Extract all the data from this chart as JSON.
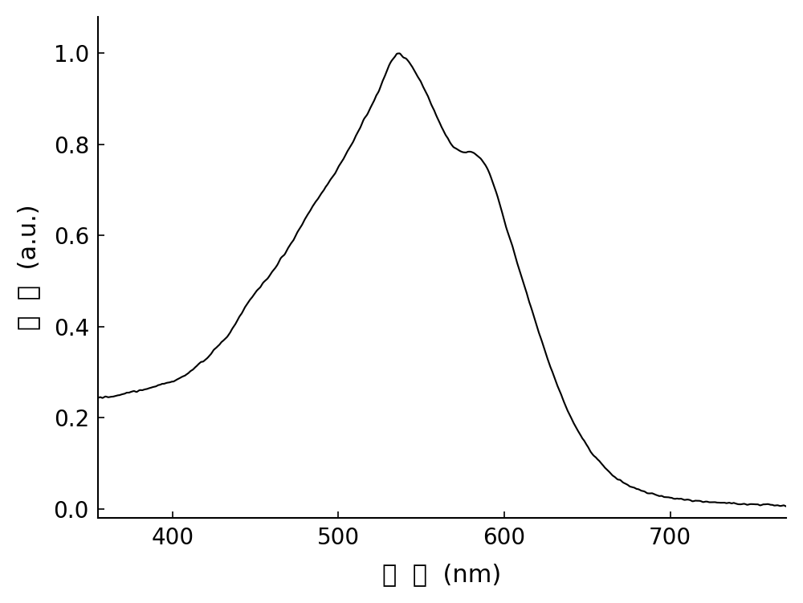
{
  "xlabel": "波  长  (nm)",
  "ylabel": "强  度  (a.u.)",
  "xlim": [
    355,
    770
  ],
  "ylim": [
    -0.02,
    1.08
  ],
  "xticks": [
    400,
    500,
    600,
    700
  ],
  "yticks": [
    0.0,
    0.2,
    0.4,
    0.6,
    0.8,
    1.0
  ],
  "line_color": "#000000",
  "line_width": 1.5,
  "background_color": "#ffffff",
  "xlabel_fontsize": 22,
  "ylabel_fontsize": 22,
  "tick_fontsize": 20,
  "figsize": [
    10.0,
    7.51
  ],
  "dpi": 100
}
